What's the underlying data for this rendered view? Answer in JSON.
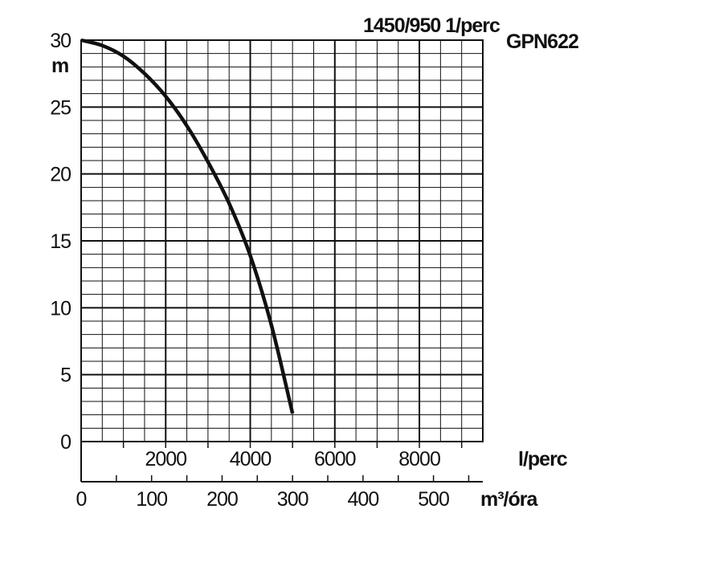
{
  "chart_data": {
    "type": "line",
    "title": "GPN622",
    "subtitle": "1450/950 1/perc",
    "ylabel": "m",
    "x_unit_primary": "l/perc",
    "x_unit_secondary": "m³/óra",
    "xlim": [
      0,
      9500
    ],
    "ylim": [
      0,
      30
    ],
    "secondary_xlim": [
      0,
      570
    ],
    "y_ticks": [
      "0",
      "5",
      "10",
      "15",
      "20",
      "25",
      "30"
    ],
    "x_ticks_primary": [
      "2000",
      "4000",
      "6000",
      "8000"
    ],
    "x_ticks_secondary": [
      "0",
      "100",
      "200",
      "300",
      "400",
      "500"
    ],
    "grid": true,
    "series": [
      {
        "x": [
          0,
          500,
          1000,
          1500,
          2000,
          2500,
          3000,
          3500,
          4000,
          4500,
          5000
        ],
        "y": [
          30,
          29.6,
          28.8,
          27.5,
          25.8,
          23.6,
          20.9,
          17.8,
          13.9,
          8.7,
          2.1
        ]
      }
    ]
  }
}
